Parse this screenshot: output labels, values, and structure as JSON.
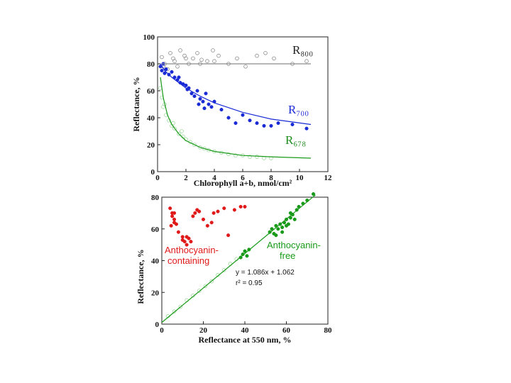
{
  "chart_data": [
    {
      "type": "scatter",
      "x_label": "Chlorophyll a+b, nmol/cm²",
      "y_label": "Reflectance, %",
      "xlim": [
        0,
        12
      ],
      "ylim": [
        0,
        100
      ],
      "xticks": [
        0,
        2,
        4,
        6,
        8,
        10,
        12
      ],
      "yticks": [
        0,
        20,
        40,
        60,
        80,
        100
      ],
      "annotations": [
        "R₈₀₀",
        "R₇₀₀",
        "R₆₇₈"
      ],
      "annotation_colors": [
        "#222222",
        "#1a2bd6",
        "#1a8a1a"
      ],
      "series": [
        {
          "mode": "markers",
          "marker": "open",
          "color": "#8a8a8a",
          "x": [
            0.3,
            0.5,
            0.7,
            0.9,
            1.1,
            1.4,
            1.6,
            1.9,
            2.2,
            2.5,
            2.8,
            3.1,
            3.5,
            3.9,
            4.3,
            5.0,
            5.6,
            6.2,
            7.0,
            7.6,
            8.2,
            9.5,
            10.5,
            0.4,
            1.2,
            2.0,
            3.0,
            4.0
          ],
          "values": [
            85,
            80,
            76,
            88,
            84,
            78,
            90,
            86,
            80,
            84,
            88,
            83,
            82,
            90,
            86,
            80,
            84,
            78,
            86,
            88,
            84,
            80,
            82,
            78,
            82,
            84,
            80,
            82
          ]
        },
        {
          "mode": "markers",
          "marker": "filled",
          "color": "#1a2bd6",
          "x": [
            0.2,
            0.3,
            0.4,
            0.5,
            0.6,
            0.8,
            1.0,
            1.2,
            1.4,
            1.6,
            1.8,
            2.0,
            2.2,
            2.4,
            2.6,
            2.8,
            3.0,
            3.2,
            3.4,
            3.6,
            3.8,
            4.0,
            4.5,
            5.0,
            5.5,
            6.0,
            6.5,
            7.0,
            7.5,
            8.0,
            8.5,
            9.5,
            10.5,
            2.9,
            3.3,
            1.5,
            2.1
          ],
          "values": [
            78,
            75,
            80,
            73,
            76,
            72,
            74,
            70,
            68,
            66,
            65,
            64,
            62,
            58,
            56,
            60,
            54,
            52,
            58,
            50,
            48,
            52,
            46,
            40,
            36,
            42,
            38,
            36,
            34,
            34,
            36,
            35,
            32,
            50,
            47,
            70,
            61
          ]
        },
        {
          "mode": "markers",
          "marker": "open",
          "color": "#9ed89e",
          "x": [
            0.2,
            0.3,
            0.4,
            0.6,
            0.8,
            1.0,
            1.2,
            1.5,
            1.8,
            2.0,
            2.3,
            2.6,
            3.0,
            3.3,
            3.6,
            4.0,
            4.5,
            5.0,
            5.5,
            6.0,
            6.5,
            7.0,
            7.5,
            8.0,
            0.5,
            1.1,
            1.7
          ],
          "values": [
            62,
            55,
            48,
            42,
            38,
            34,
            32,
            28,
            26,
            24,
            22,
            20,
            18,
            17,
            16,
            15,
            14,
            13,
            12,
            12,
            11,
            11,
            10,
            10,
            50,
            36,
            30
          ]
        },
        {
          "mode": "line",
          "color": "#8a8a8a",
          "x": [
            0.3,
            10.8
          ],
          "values": [
            80,
            80
          ]
        },
        {
          "mode": "line",
          "color": "#1a2bd6",
          "x": [
            0.2,
            0.5,
            1,
            2,
            3,
            4,
            6,
            8,
            10.8
          ],
          "values": [
            80,
            75,
            70,
            62,
            56,
            51,
            44,
            39,
            35
          ]
        },
        {
          "mode": "line",
          "color": "#1a9a1a",
          "x": [
            0.2,
            0.4,
            0.7,
            1,
            1.5,
            2,
            3,
            4,
            6,
            8,
            10.8
          ],
          "values": [
            70,
            55,
            42,
            35,
            28,
            23,
            18,
            15,
            12,
            11,
            10
          ]
        }
      ]
    },
    {
      "type": "scatter",
      "x_label": "Reflectance at 550 nm, %",
      "y_label": "Reflectance, %",
      "xlim": [
        0,
        80
      ],
      "ylim": [
        0,
        80
      ],
      "xticks": [
        0,
        20,
        40,
        60,
        80
      ],
      "yticks": [
        0,
        20,
        40,
        60,
        80
      ],
      "annotations": [
        "Anthocyanin-",
        "containing",
        "Anthocyanin-",
        "free",
        "y = 1.086x + 1.062",
        "r² = 0.95"
      ],
      "annotation_colors": [
        "#e01a1a",
        "#e01a1a",
        "#1a9a1a",
        "#1a9a1a",
        "#111111",
        "#111111"
      ],
      "series": [
        {
          "mode": "markers",
          "marker": "filled",
          "color": "#e01a1a",
          "x": [
            4,
            5,
            5,
            6,
            6,
            4.5,
            8,
            10,
            12,
            13,
            14,
            15,
            16,
            17,
            18,
            20,
            22,
            24,
            25,
            27,
            30,
            32,
            35,
            38,
            40,
            10,
            11,
            12,
            7,
            6
          ],
          "values": [
            73,
            70,
            68,
            66,
            64,
            62,
            58,
            55,
            50,
            54,
            52,
            68,
            70,
            72,
            71,
            66,
            62,
            64,
            70,
            71,
            73,
            56,
            72,
            74,
            74,
            53,
            52,
            55,
            63,
            70
          ]
        },
        {
          "mode": "markers",
          "marker": "filled",
          "color": "#1a9a1a",
          "x": [
            38,
            39,
            40,
            41,
            42,
            52,
            53,
            54,
            55,
            56,
            57,
            58,
            59,
            60,
            61,
            62,
            63,
            64,
            65,
            66,
            68,
            70,
            73,
            55,
            58,
            60,
            62
          ],
          "values": [
            42,
            44,
            46,
            43,
            47,
            58,
            60,
            57,
            62,
            60,
            63,
            61,
            64,
            66,
            63,
            67,
            69,
            66,
            72,
            74,
            76,
            78,
            82,
            56,
            58,
            62,
            70
          ]
        },
        {
          "mode": "markers",
          "marker": "open",
          "color": "#9ed89e",
          "x": [
            3,
            6,
            9,
            12,
            15,
            18,
            21,
            24,
            27,
            30,
            33,
            36
          ],
          "values": [
            5,
            8,
            11,
            15,
            18,
            21,
            24,
            27,
            31,
            34,
            38,
            41
          ]
        },
        {
          "mode": "line",
          "color": "#1a9a1a",
          "x": [
            0,
            74
          ],
          "values": [
            1.062,
            81.426
          ]
        }
      ]
    }
  ]
}
